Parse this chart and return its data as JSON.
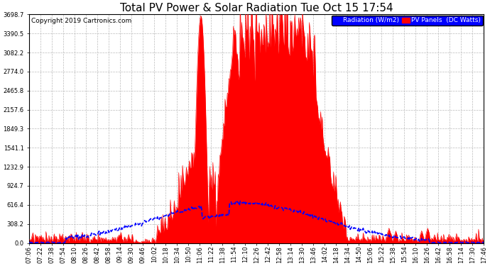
{
  "title": "Total PV Power & Solar Radiation Tue Oct 15 17:54",
  "copyright": "Copyright 2019 Cartronics.com",
  "legend_labels": [
    "Radiation (W/m2)",
    "PV Panels  (DC Watts)"
  ],
  "y_ticks": [
    0.0,
    308.2,
    616.4,
    924.7,
    1232.9,
    1541.1,
    1849.3,
    2157.6,
    2465.8,
    2774.0,
    3082.2,
    3390.5,
    3698.7
  ],
  "y_max": 3698.7,
  "background_color": "#ffffff",
  "plot_bg_color": "#ffffff",
  "grid_color": "#bbbbbb",
  "pv_color": "#ff0000",
  "radiation_color": "#0000ff",
  "title_fontsize": 11,
  "copyright_fontsize": 6.5,
  "tick_fontsize": 6,
  "time_labels": [
    "07:06",
    "07:22",
    "07:38",
    "07:54",
    "08:10",
    "08:26",
    "08:42",
    "08:58",
    "09:14",
    "09:30",
    "09:46",
    "10:02",
    "10:18",
    "10:34",
    "10:50",
    "11:06",
    "11:22",
    "11:38",
    "11:54",
    "12:10",
    "12:26",
    "12:42",
    "12:58",
    "13:14",
    "13:30",
    "13:46",
    "14:02",
    "14:18",
    "14:34",
    "14:50",
    "15:06",
    "15:22",
    "15:38",
    "15:54",
    "16:10",
    "16:26",
    "16:42",
    "16:58",
    "17:14",
    "17:30",
    "17:46"
  ]
}
